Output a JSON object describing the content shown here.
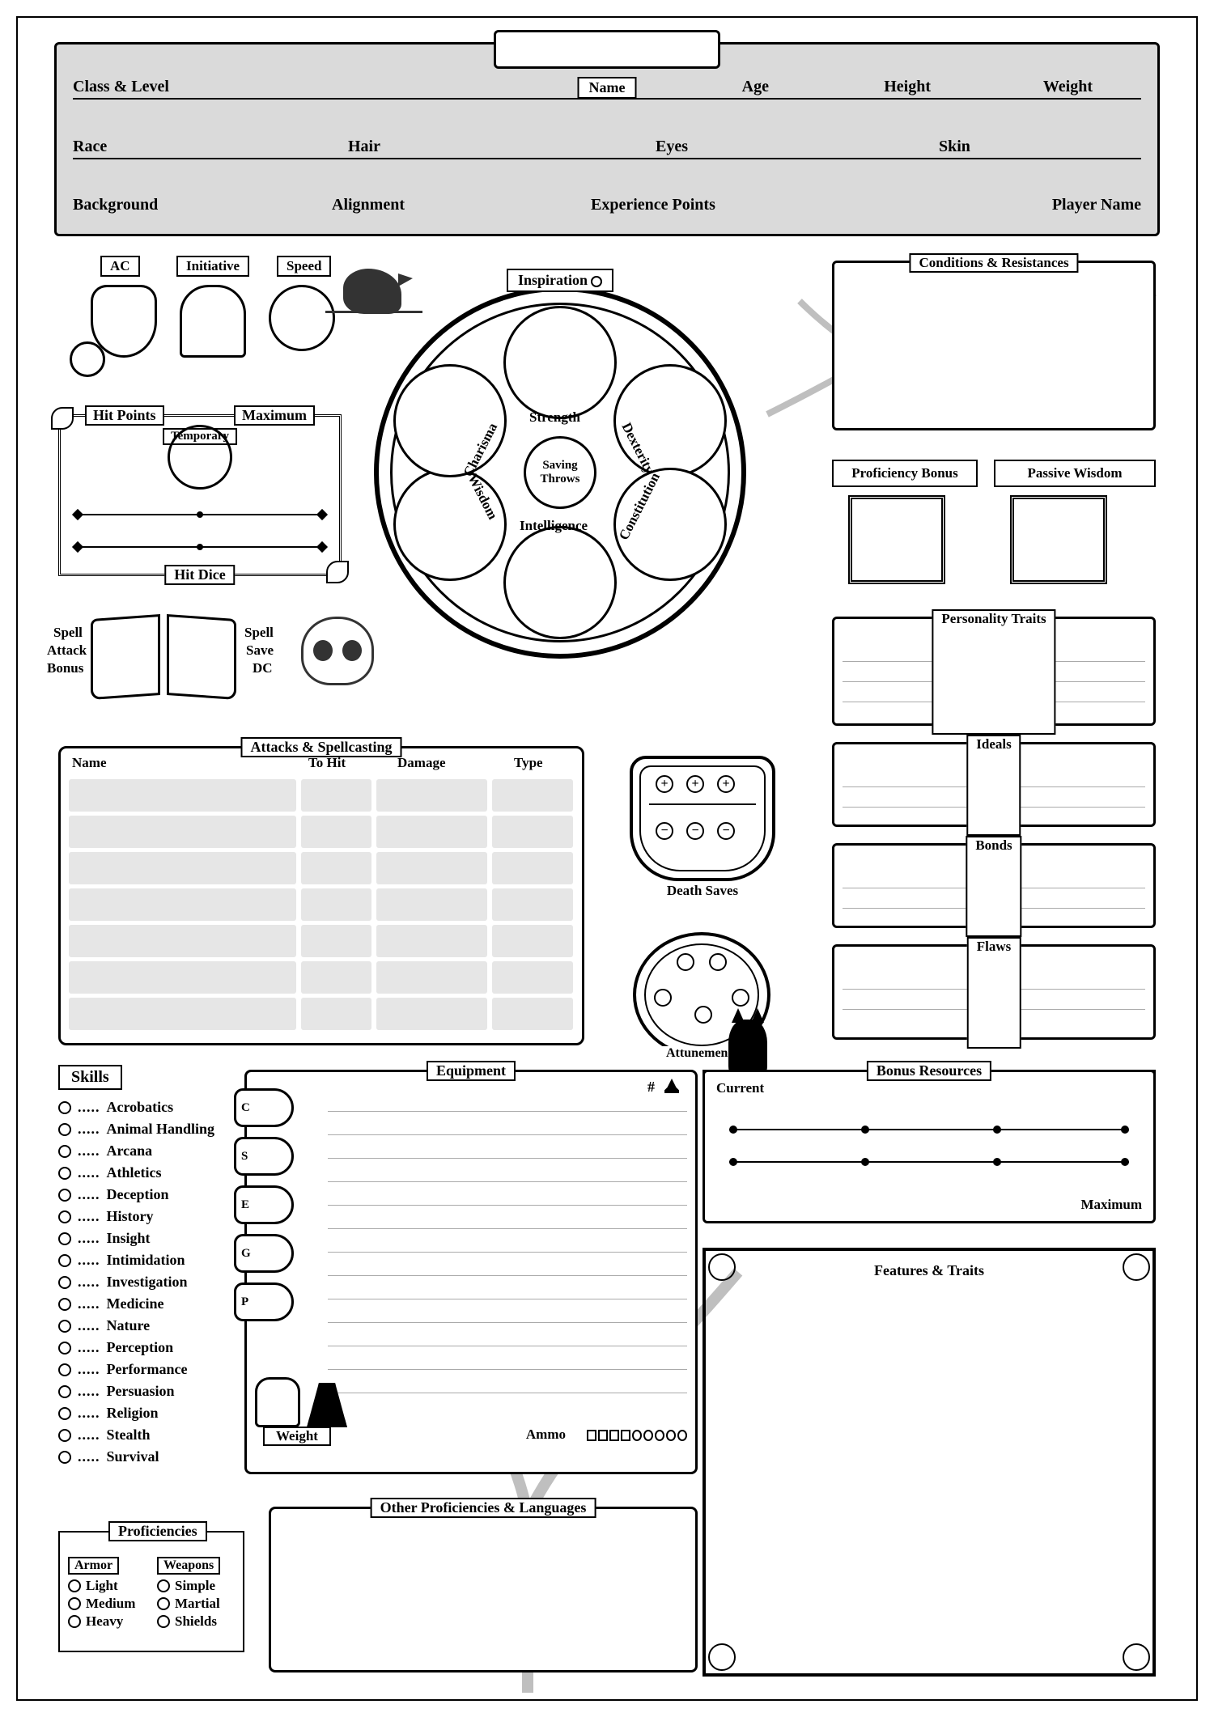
{
  "header": {
    "name_label": "Name",
    "fields_row1": [
      "Class & Level",
      "Age",
      "Height",
      "Weight"
    ],
    "fields_row2": [
      "Race",
      "Hair",
      "Eyes",
      "Skin"
    ],
    "fields_row3": [
      "Background",
      "Alignment",
      "Experience Points",
      "Player Name"
    ]
  },
  "stats": {
    "ac": "AC",
    "initiative": "Initiative",
    "speed": "Speed",
    "inspiration": "Inspiration",
    "hit_points": "Hit Points",
    "maximum": "Maximum",
    "temporary": "Temporary",
    "hit_dice": "Hit Dice"
  },
  "abilities": {
    "center": "Saving Throws",
    "list": [
      "Strength",
      "Dexterity",
      "Constitution",
      "Intelligence",
      "Wisdom",
      "Charisma"
    ]
  },
  "spellbook": {
    "attack_bonus_l1": "Spell",
    "attack_bonus_l2": "Attack",
    "attack_bonus_l3": "Bonus",
    "save_dc_l1": "Spell",
    "save_dc_l2": "Save",
    "save_dc_l3": "DC"
  },
  "attacks": {
    "title": "Attacks & Spellcasting",
    "headers": [
      "Name",
      "To Hit",
      "Damage",
      "Type"
    ],
    "row_count": 7
  },
  "death_saves": {
    "title": "Death Saves"
  },
  "attunements": {
    "title": "Attunements"
  },
  "right": {
    "conditions": "Conditions & Resistances",
    "prof_bonus": "Proficiency Bonus",
    "passive_wis": "Passive Wisdom",
    "personality": "Personality Traits",
    "ideals": "Ideals",
    "bonds": "Bonds",
    "flaws": "Flaws"
  },
  "skills": {
    "title": "Skills",
    "list": [
      "Acrobatics",
      "Animal Handling",
      "Arcana",
      "Athletics",
      "Deception",
      "History",
      "Insight",
      "Intimidation",
      "Investigation",
      "Medicine",
      "Nature",
      "Perception",
      "Performance",
      "Persuasion",
      "Religion",
      "Stealth",
      "Survival"
    ]
  },
  "proficiencies": {
    "title": "Proficiencies",
    "armor_hdr": "Armor",
    "weapons_hdr": "Weapons",
    "armor": [
      "Light",
      "Medium",
      "Heavy"
    ],
    "weapons": [
      "Simple",
      "Martial",
      "Shields"
    ]
  },
  "equipment": {
    "title": "Equipment",
    "coins": [
      "C",
      "S",
      "E",
      "G",
      "P"
    ],
    "weight": "Weight",
    "ammo": "Ammo",
    "hash": "#"
  },
  "other_prof": {
    "title": "Other Proficiencies & Languages"
  },
  "bonus_resources": {
    "title": "Bonus Resources",
    "current": "Current",
    "maximum": "Maximum"
  },
  "features": {
    "title": "Features & Traits"
  },
  "colors": {
    "header_bg": "#dadada",
    "cell_bg": "#e6e6e6",
    "line": "#000000",
    "deco": "#bfbfbf"
  }
}
